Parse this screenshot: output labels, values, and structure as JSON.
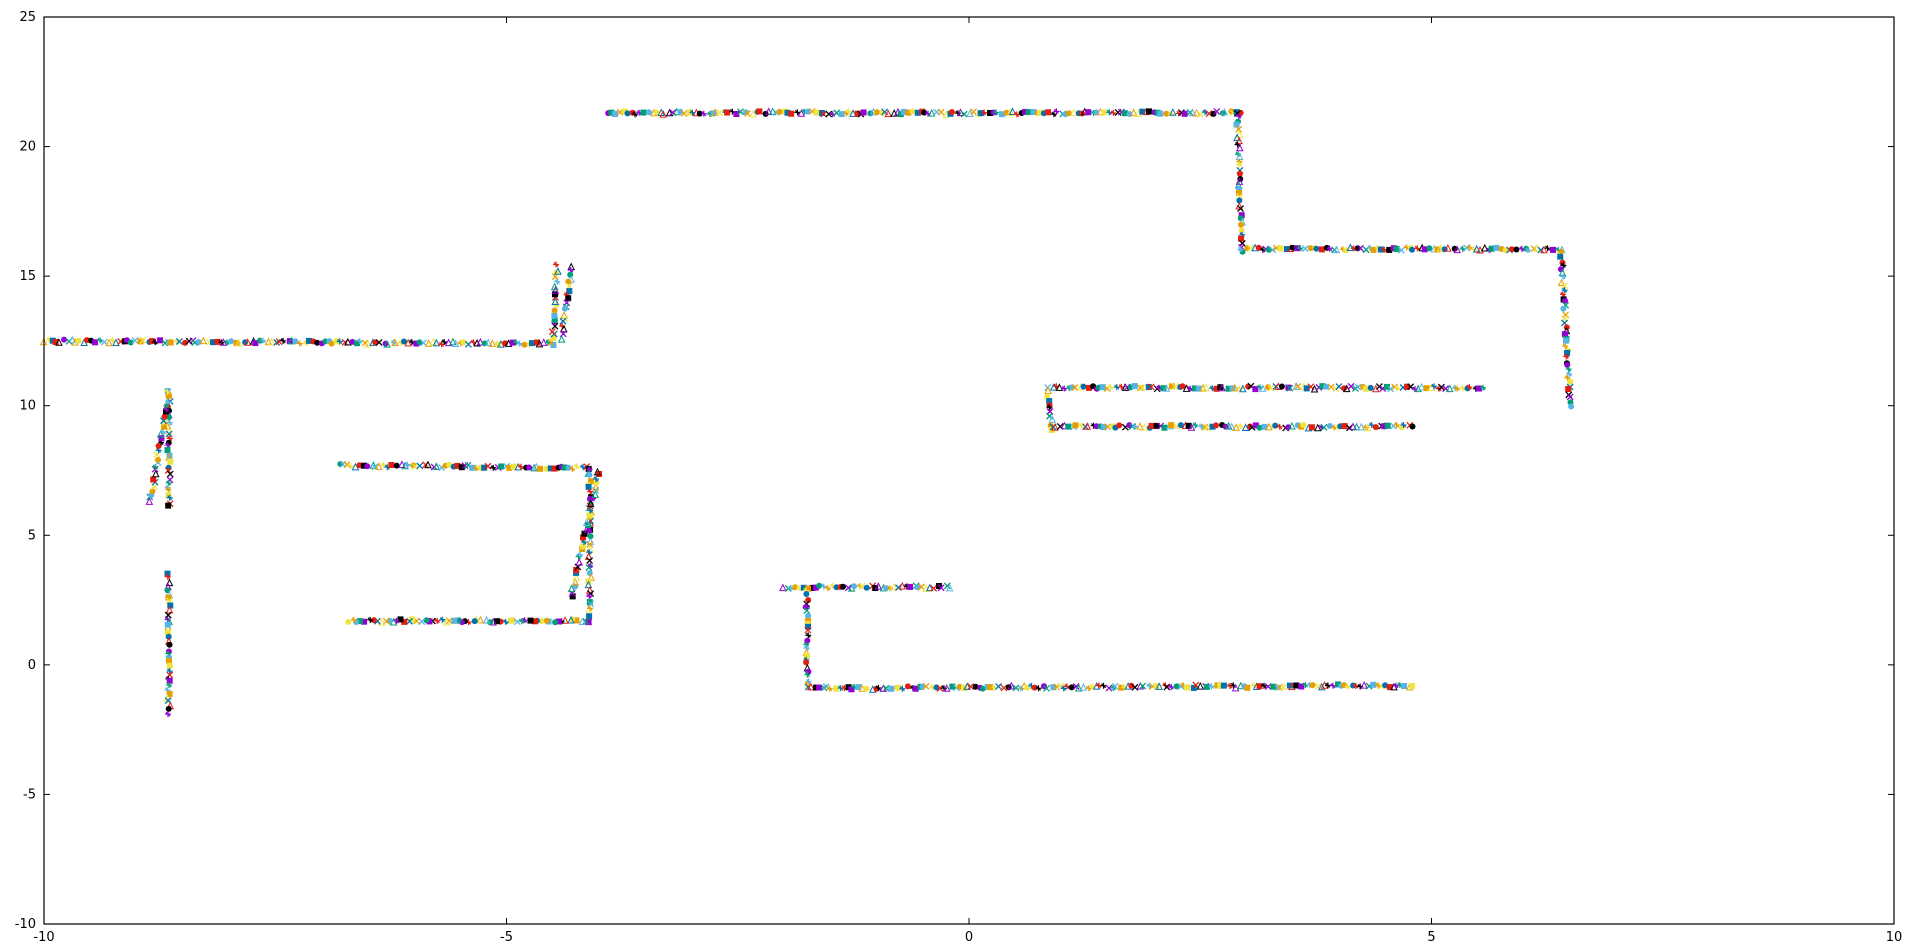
{
  "chart_data": {
    "type": "scatter",
    "title": "",
    "xlabel": "",
    "ylabel": "",
    "xlim": [
      -10,
      10
    ],
    "ylim": [
      -10,
      25
    ],
    "x_ticks": [
      -10,
      -5,
      0,
      5,
      10
    ],
    "y_ticks": [
      -10,
      -5,
      0,
      5,
      10,
      15,
      20,
      25
    ],
    "x_tick_labels": [
      "-10",
      "-5",
      "0",
      "5",
      "10"
    ],
    "y_tick_labels": [
      "-10",
      "-5",
      "0",
      "5",
      "10",
      "15",
      "20",
      "25"
    ],
    "grid": false,
    "legend": "none",
    "marker_colors": [
      "#9400d3",
      "#009e73",
      "#56b4e9",
      "#e69f00",
      "#f0e442",
      "#0072b2",
      "#e51e10",
      "#000000"
    ],
    "marker_shapes": [
      "circle",
      "triangle",
      "square",
      "cross",
      "star"
    ],
    "tracks": [
      {
        "x": [
          -3.9,
          2.95
        ],
        "y": [
          21.3,
          21.3
        ]
      },
      {
        "x": [
          2.9,
          2.95
        ],
        "y": [
          21.3,
          16.0
        ]
      },
      {
        "x": [
          2.95,
          6.4
        ],
        "y": [
          16.05,
          16.05
        ]
      },
      {
        "x": [
          6.4,
          6.5
        ],
        "y": [
          16.0,
          10.0
        ]
      },
      {
        "x": [
          -10.0,
          -4.5
        ],
        "y": [
          12.5,
          12.4
        ]
      },
      {
        "x": [
          -4.5,
          -4.45
        ],
        "y": [
          12.4,
          15.4
        ]
      },
      {
        "x": [
          -4.3,
          -4.4
        ],
        "y": [
          15.4,
          12.6
        ]
      },
      {
        "x": [
          -8.65,
          -8.65
        ],
        "y": [
          10.6,
          6.1
        ]
      },
      {
        "x": [
          -8.85,
          -8.65
        ],
        "y": [
          6.3,
          10.5
        ]
      },
      {
        "x": [
          -8.65,
          -8.65
        ],
        "y": [
          3.5,
          -1.9
        ]
      },
      {
        "x": [
          -6.8,
          -4.1
        ],
        "y": [
          7.7,
          7.6
        ]
      },
      {
        "x": [
          -4.1,
          -4.1
        ],
        "y": [
          7.6,
          1.7
        ]
      },
      {
        "x": [
          -4.3,
          -4.0
        ],
        "y": [
          2.6,
          7.5
        ]
      },
      {
        "x": [
          -4.1,
          -6.7
        ],
        "y": [
          1.7,
          1.7
        ]
      },
      {
        "x": [
          0.9,
          5.55
        ],
        "y": [
          10.7,
          10.7
        ]
      },
      {
        "x": [
          0.85,
          0.9
        ],
        "y": [
          10.7,
          9.1
        ]
      },
      {
        "x": [
          0.9,
          4.8
        ],
        "y": [
          9.2,
          9.2
        ]
      },
      {
        "x": [
          -2.0,
          -0.2
        ],
        "y": [
          3.0,
          3.0
        ]
      },
      {
        "x": [
          -1.75,
          -1.75
        ],
        "y": [
          3.0,
          -0.9
        ]
      },
      {
        "x": [
          -1.75,
          4.8
        ],
        "y": [
          -0.9,
          -0.8
        ]
      }
    ]
  }
}
